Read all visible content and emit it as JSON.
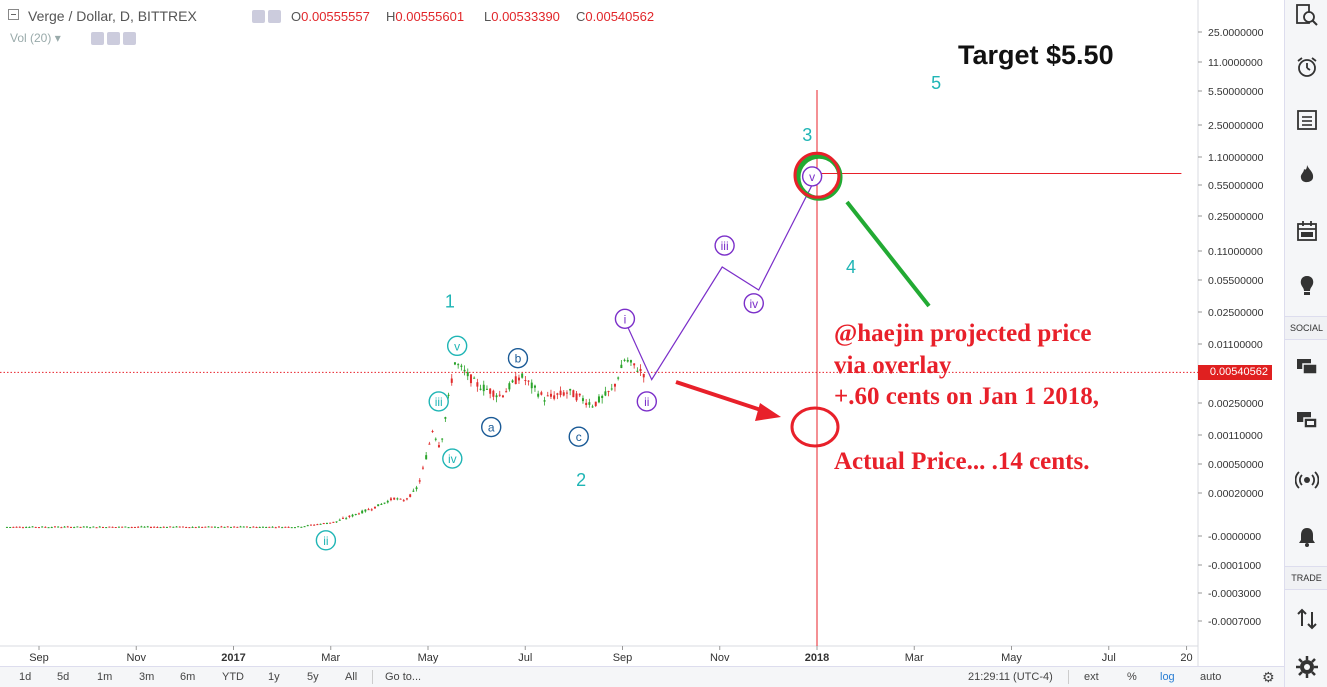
{
  "header": {
    "symbol": "Verge / Dollar, D, BITTREX",
    "open_label": "O",
    "open": "0.00555557",
    "high_label": "H",
    "high": "0.00555601",
    "low_label": "L",
    "low": "0.00533390",
    "close_label": "C",
    "close": "0.00540562",
    "volume_label": "Vol (20)"
  },
  "colors": {
    "accent_red": "#e8202a",
    "wave_teal": "#1fb5b5",
    "wave_blue": "#1a5a96",
    "wave_purple": "#7b2fc9",
    "circle_green": "#22aa33",
    "candle_up": "#29a329",
    "candle_down": "#e02c2c"
  },
  "annotations": {
    "target": "Target $5.50",
    "projection_line1": "@haejin projected price",
    "projection_line2": "via overlay",
    "projection_line3": "+.60 cents on Jan 1 2018,",
    "actual": "Actual Price... .14 cents."
  },
  "current_price_tag": "0.00540562",
  "right_toolbar": {
    "icons": [
      "search-icon",
      "alarm-clock-icon",
      "list-icon",
      "flame-icon",
      "calendar-icon",
      "lightbulb-icon",
      "chat-icon",
      "chat-stream-icon",
      "broadcast-icon",
      "bell-icon",
      "trade-arrows-icon",
      "gear-icon"
    ],
    "social_label": "SOCIAL",
    "trade_label": "TRADE"
  },
  "bottom_toolbar": {
    "ranges": [
      "1d",
      "5d",
      "1m",
      "3m",
      "6m",
      "YTD",
      "1y",
      "5y",
      "All"
    ],
    "goto": "Go to...",
    "clock": "21:29:11 (UTC-4)",
    "options": [
      "ext",
      "%",
      "log",
      "auto"
    ]
  },
  "chart_data": {
    "type": "candlestick",
    "title": "Verge / Dollar, D, BITTREX",
    "scale": "log",
    "x_ticks": [
      {
        "label": "Sep",
        "t": 1.5
      },
      {
        "label": "Nov",
        "t": 3.5
      },
      {
        "label": "2017",
        "t": 5.5
      },
      {
        "label": "Mar",
        "t": 7.5
      },
      {
        "label": "May",
        "t": 9.5
      },
      {
        "label": "Jul",
        "t": 11.5
      },
      {
        "label": "Sep",
        "t": 13.5
      },
      {
        "label": "Nov",
        "t": 15.5
      },
      {
        "label": "2018",
        "t": 17.5
      },
      {
        "label": "Mar",
        "t": 19.5
      },
      {
        "label": "May",
        "t": 21.5
      },
      {
        "label": "Jul",
        "t": 23.5
      },
      {
        "label": "20",
        "t": 25.1
      }
    ],
    "y_ticks": [
      "25.0000000",
      "11.0000000",
      "5.50000000",
      "2.50000000",
      "1.10000000",
      "0.55000000",
      "0.25000000",
      "0.11000000",
      "0.05500000",
      "0.02500000",
      "0.01100000",
      "0.00250000",
      "0.00110000",
      "0.00050000",
      "0.00020000",
      "-0.0000000",
      "-0.0001000",
      "-0.0003000",
      "-0.0007000"
    ],
    "price_path": [
      {
        "t": 0.8,
        "v": 3e-05
      },
      {
        "t": 6.8,
        "v": 3e-05
      },
      {
        "t": 7.6,
        "v": 4e-05
      },
      {
        "t": 8.0,
        "v": 6e-05
      },
      {
        "t": 8.4,
        "v": 9e-05
      },
      {
        "t": 8.8,
        "v": 0.00015
      },
      {
        "t": 9.0,
        "v": 0.00013
      },
      {
        "t": 9.3,
        "v": 0.00025
      },
      {
        "t": 9.6,
        "v": 0.0013
      },
      {
        "t": 9.75,
        "v": 0.0008
      },
      {
        "t": 10.05,
        "v": 0.007
      },
      {
        "t": 10.5,
        "v": 0.004
      },
      {
        "t": 11.0,
        "v": 0.003
      },
      {
        "t": 11.4,
        "v": 0.005
      },
      {
        "t": 11.9,
        "v": 0.0028
      },
      {
        "t": 12.4,
        "v": 0.0033
      },
      {
        "t": 12.9,
        "v": 0.0024
      },
      {
        "t": 13.3,
        "v": 0.0035
      },
      {
        "t": 13.55,
        "v": 0.0075
      },
      {
        "t": 13.95,
        "v": 0.0052
      }
    ],
    "projection_path": [
      {
        "t": 13.55,
        "v": 0.02
      },
      {
        "t": 14.1,
        "v": 0.0045
      },
      {
        "t": 15.55,
        "v": 0.075
      },
      {
        "t": 16.3,
        "v": 0.043
      },
      {
        "t": 17.5,
        "v": 0.7
      }
    ],
    "projection_horizontal": {
      "from_t": 17.4,
      "to_t": 25.2,
      "v": 0.6
    },
    "vertical_marker_t": 17.5,
    "current_price": 0.0054,
    "wave_labels": [
      {
        "text": "1",
        "t": 9.95,
        "v": 0.028,
        "style": "plain",
        "color": "teal"
      },
      {
        "text": "2",
        "t": 12.65,
        "v": 0.00025,
        "style": "plain",
        "color": "teal"
      },
      {
        "text": "3",
        "t": 17.3,
        "v": 1.65,
        "style": "plain",
        "color": "teal"
      },
      {
        "text": "4",
        "t": 18.2,
        "v": 0.065,
        "style": "plain",
        "color": "teal"
      },
      {
        "text": "5",
        "t": 19.95,
        "v": 5.8,
        "style": "plain",
        "color": "teal"
      },
      {
        "text": "v",
        "t": 10.1,
        "v": 0.0105,
        "style": "circle",
        "color": "teal"
      },
      {
        "text": "iii",
        "t": 9.72,
        "v": 0.0026,
        "style": "circle",
        "color": "teal"
      },
      {
        "text": "iv",
        "t": 10.0,
        "v": 0.00058,
        "style": "circle",
        "color": "teal"
      },
      {
        "text": "ii",
        "t": 7.4,
        "v": -1.5e-05,
        "style": "circle",
        "color": "teal"
      },
      {
        "text": "a",
        "t": 10.8,
        "v": 0.00135,
        "style": "circle",
        "color": "blue"
      },
      {
        "text": "b",
        "t": 11.35,
        "v": 0.0077,
        "style": "circle",
        "color": "blue"
      },
      {
        "text": "c",
        "t": 12.6,
        "v": 0.00105,
        "style": "circle",
        "color": "blue"
      },
      {
        "text": "i",
        "t": 13.55,
        "v": 0.021,
        "style": "circle",
        "color": "purple"
      },
      {
        "text": "ii",
        "t": 14.0,
        "v": 0.0026,
        "style": "circle",
        "color": "purple"
      },
      {
        "text": "iii",
        "t": 15.6,
        "v": 0.125,
        "style": "circle",
        "color": "purple"
      },
      {
        "text": "iv",
        "t": 16.2,
        "v": 0.031,
        "style": "circle",
        "color": "purple"
      },
      {
        "text": "v",
        "t": 17.4,
        "v": 0.68,
        "style": "circle",
        "color": "purple"
      }
    ]
  }
}
